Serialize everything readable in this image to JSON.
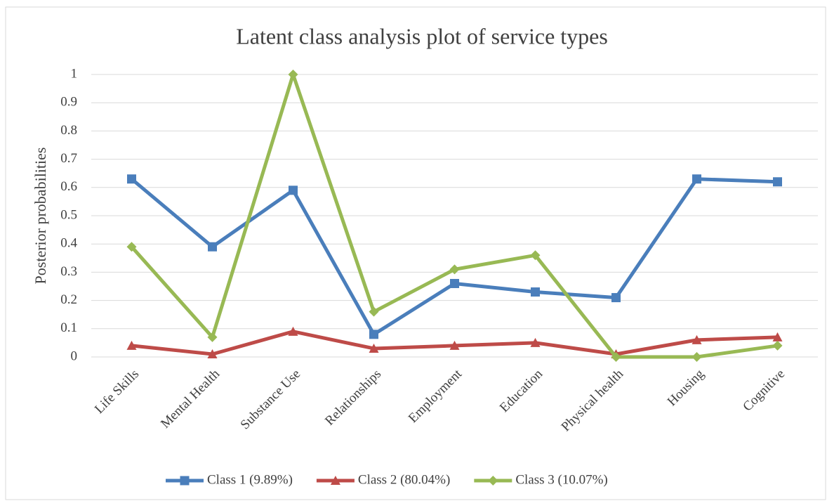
{
  "chart_data": {
    "type": "line",
    "title": "Latent class analysis plot of service types",
    "y_label": "Posterior probabilities",
    "categories": [
      "Life Skills",
      "Mental Health",
      "Substance Use",
      "Relationships",
      "Employment",
      "Education",
      "Physical health",
      "Housing",
      "Cognitive"
    ],
    "series": [
      {
        "name": "Class 1 (9.89%)",
        "color": "#4a7ebb",
        "marker": "square",
        "values": [
          0.63,
          0.39,
          0.59,
          0.08,
          0.26,
          0.23,
          0.21,
          0.63,
          0.62
        ]
      },
      {
        "name": "Class 2 (80.04%)",
        "color": "#be4b48",
        "marker": "triangle",
        "values": [
          0.04,
          0.01,
          0.09,
          0.03,
          0.04,
          0.05,
          0.01,
          0.06,
          0.07
        ]
      },
      {
        "name": "Class 3 (10.07%)",
        "color": "#98b954",
        "marker": "diamond",
        "values": [
          0.39,
          0.07,
          1.0,
          0.16,
          0.31,
          0.36,
          0.0,
          0.0,
          0.04
        ]
      }
    ],
    "ylim": [
      0,
      1
    ],
    "yticks": [
      0,
      0.1,
      0.2,
      0.3,
      0.4,
      0.5,
      0.6,
      0.7,
      0.8,
      0.9,
      1
    ],
    "grid": true,
    "legend": "bottom"
  }
}
